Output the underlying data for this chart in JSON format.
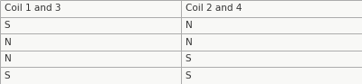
{
  "col_headers": [
    "Coil 1 and 3",
    "Coil 2 and 4"
  ],
  "rows": [
    [
      "S",
      "N"
    ],
    [
      "N",
      "N"
    ],
    [
      "N",
      "S"
    ],
    [
      "S",
      "S"
    ]
  ],
  "col_split": 0.5,
  "border_color": "#aaaaaa",
  "header_font_size": 7.5,
  "cell_font_size": 7.5,
  "text_color": "#333333",
  "cell_bg": "#f8f8f6",
  "fig_width": 4.0,
  "fig_height": 0.93,
  "dpi": 100
}
